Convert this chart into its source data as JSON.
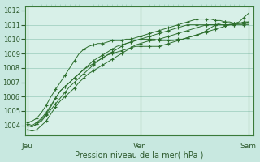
{
  "background_color": "#c8e8e0",
  "plot_bg_color": "#d8f0e8",
  "grid_color": "#99ccbb",
  "line_color": "#2d6e2d",
  "marker_color": "#2d6e2d",
  "xlabel": "Pression niveau de la mer( hPa )",
  "xtick_labels": [
    "Jeu",
    "Ven",
    "Sam"
  ],
  "xtick_positions": [
    0,
    24,
    47
  ],
  "ylim": [
    1003.3,
    1012.3
  ],
  "ytick_values": [
    1004,
    1005,
    1006,
    1007,
    1008,
    1009,
    1010,
    1011,
    1012
  ],
  "series": [
    [
      1003.7,
      1003.6,
      1003.7,
      1004.0,
      1004.3,
      1004.8,
      1005.3,
      1005.7,
      1006.0,
      1006.3,
      1006.6,
      1007.0,
      1007.3,
      1007.6,
      1007.8,
      1008.0,
      1008.2,
      1008.4,
      1008.6,
      1008.8,
      1009.0,
      1009.2,
      1009.4,
      1009.6,
      1009.7,
      1009.8,
      1009.9,
      1009.9,
      1010.0,
      1010.1,
      1010.2,
      1010.3,
      1010.4,
      1010.5,
      1010.6,
      1010.7,
      1010.8,
      1010.9,
      1011.0,
      1011.0,
      1011.0,
      1011.0,
      1011.0,
      1011.0,
      1011.1,
      1011.2,
      1011.5,
      1011.8
    ],
    [
      1004.0,
      1003.9,
      1004.1,
      1004.4,
      1004.8,
      1005.3,
      1005.9,
      1006.4,
      1006.7,
      1007.0,
      1007.3,
      1007.6,
      1007.9,
      1008.2,
      1008.5,
      1008.7,
      1008.9,
      1009.1,
      1009.3,
      1009.5,
      1009.6,
      1009.7,
      1009.8,
      1009.9,
      1010.0,
      1010.0,
      1010.0,
      1010.0,
      1009.9,
      1009.9,
      1009.9,
      1009.9,
      1010.0,
      1010.0,
      1010.1,
      1010.2,
      1010.3,
      1010.4,
      1010.6,
      1010.8,
      1011.0,
      1011.1,
      1011.2,
      1011.1,
      1011.1,
      1011.1,
      1011.1,
      1011.1
    ],
    [
      1004.1,
      1004.0,
      1004.2,
      1004.5,
      1004.9,
      1005.4,
      1005.9,
      1006.4,
      1006.7,
      1007.0,
      1007.3,
      1007.6,
      1007.9,
      1008.1,
      1008.3,
      1008.5,
      1008.7,
      1008.9,
      1009.0,
      1009.1,
      1009.2,
      1009.3,
      1009.4,
      1009.5,
      1009.5,
      1009.5,
      1009.5,
      1009.5,
      1009.5,
      1009.6,
      1009.7,
      1009.8,
      1009.9,
      1010.0,
      1010.1,
      1010.2,
      1010.3,
      1010.4,
      1010.5,
      1010.6,
      1010.7,
      1010.8,
      1010.9,
      1011.0,
      1011.0,
      1011.0,
      1011.0,
      1011.0
    ],
    [
      1004.2,
      1004.3,
      1004.5,
      1004.9,
      1005.4,
      1006.0,
      1006.5,
      1007.0,
      1007.5,
      1008.0,
      1008.5,
      1009.0,
      1009.3,
      1009.5,
      1009.6,
      1009.7,
      1009.7,
      1009.8,
      1009.9,
      1009.9,
      1009.9,
      1010.0,
      1010.0,
      1010.1,
      1010.2,
      1010.3,
      1010.4,
      1010.5,
      1010.6,
      1010.7,
      1010.8,
      1010.9,
      1011.0,
      1011.1,
      1011.2,
      1011.3,
      1011.4,
      1011.4,
      1011.4,
      1011.4,
      1011.3,
      1011.3,
      1011.2,
      1011.2,
      1011.1,
      1011.1,
      1011.1,
      1011.2
    ],
    [
      1004.0,
      1003.9,
      1004.1,
      1004.3,
      1004.7,
      1005.1,
      1005.5,
      1005.9,
      1006.3,
      1006.7,
      1007.0,
      1007.3,
      1007.6,
      1007.9,
      1008.2,
      1008.5,
      1008.7,
      1008.9,
      1009.1,
      1009.3,
      1009.5,
      1009.7,
      1009.8,
      1009.9,
      1010.0,
      1010.1,
      1010.2,
      1010.3,
      1010.4,
      1010.5,
      1010.6,
      1010.7,
      1010.8,
      1010.9,
      1011.0,
      1011.0,
      1011.0,
      1011.0,
      1011.0,
      1011.0,
      1011.0,
      1011.0,
      1011.0,
      1011.0,
      1011.0,
      1011.1,
      1011.2,
      1011.2
    ]
  ]
}
